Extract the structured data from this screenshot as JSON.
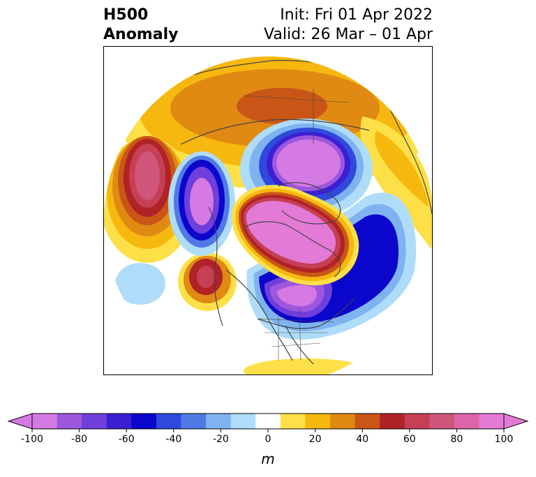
{
  "title": {
    "left_line1": "H500",
    "left_line2": "Anomaly",
    "right_line1": "Init: Fri 01 Apr 2022",
    "right_line2": "Valid: 26 Mar – 01 Apr"
  },
  "colorbar": {
    "unit": "m",
    "ticks": [
      "-100",
      "-80",
      "-60",
      "-40",
      "-20",
      "0",
      "20",
      "40",
      "60",
      "80",
      "100"
    ],
    "colors": [
      "#d57ae4",
      "#9d57de",
      "#6f3fdb",
      "#3b1fd3",
      "#0b06cc",
      "#2f49dd",
      "#5079e6",
      "#7fb3f0",
      "#aedcf9",
      "#ffffff",
      "#fde047",
      "#f6b80f",
      "#e08a13",
      "#c95617",
      "#b02226",
      "#c63f55",
      "#d0557a",
      "#dd64a9",
      "#e37ad6"
    ],
    "under_color": "#d57ae4",
    "over_color": "#e37ad6"
  },
  "map": {
    "projection": "north-polar-stereographic",
    "features": [
      "positive-anomaly-arctic-greenland",
      "negative-anomaly-canada",
      "negative-anomaly-scandinavia",
      "negative-anomaly-siberia",
      "positive-anomaly-north-pacific",
      "positive-anomaly-bering",
      "positive-anomaly-europe-asia"
    ]
  }
}
